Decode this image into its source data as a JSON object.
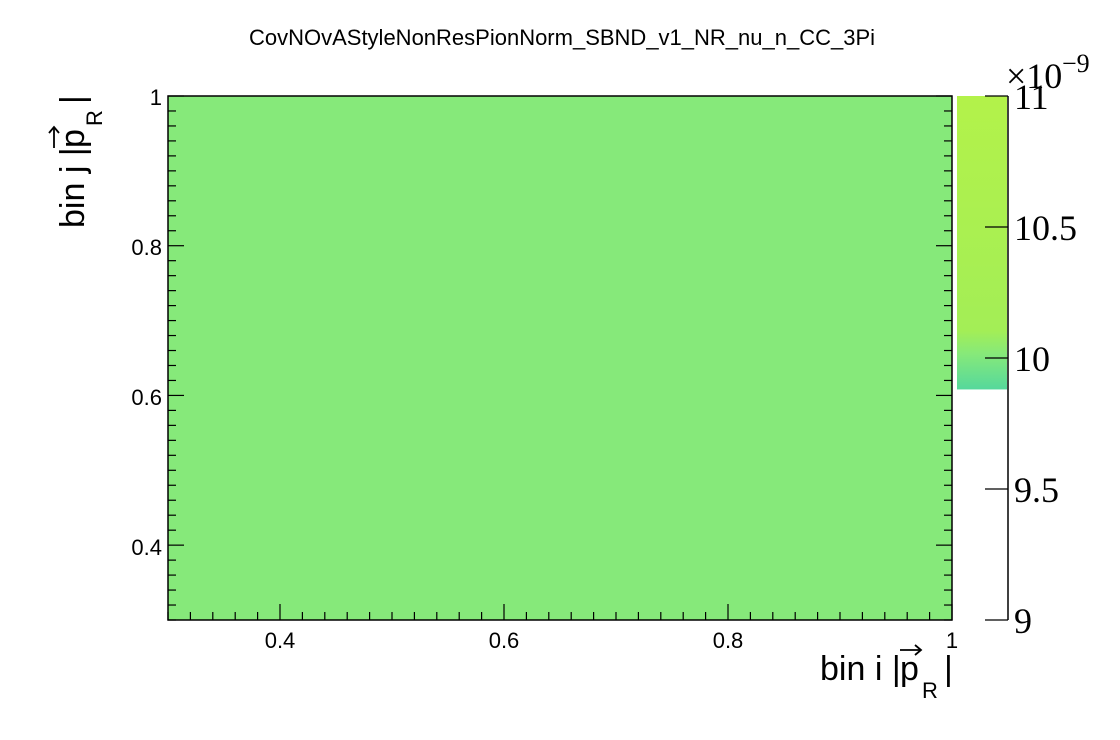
{
  "chart_data": {
    "type": "heatmap",
    "title": "CovNOvAStyleNonResPionNorm_SBND_v1_NR_nu_n_CC_3Pi",
    "xlabel": "bin i |p_R|",
    "ylabel": "bin j |p_R|",
    "xlim": [
      0.3,
      1.0
    ],
    "ylim": [
      0.3,
      1.0
    ],
    "x_ticks": [
      "0.4",
      "0.6",
      "0.8",
      "1"
    ],
    "y_ticks": [
      "0.4",
      "0.6",
      "0.8",
      "1"
    ],
    "cells": [
      {
        "x": [
          0.3,
          1.0
        ],
        "y": [
          0.3,
          1.0
        ],
        "value": 1e-08
      }
    ],
    "colorbar": {
      "range": [
        9.0,
        11.0
      ],
      "ticks": [
        "9",
        "9.5",
        "10",
        "10.5",
        "11"
      ],
      "exponent_label": "×10",
      "exponent": "−9",
      "palette": [
        "#5ad7a3",
        "#7ee47e",
        "#aef050"
      ]
    },
    "cell_color": "#86e97a"
  }
}
